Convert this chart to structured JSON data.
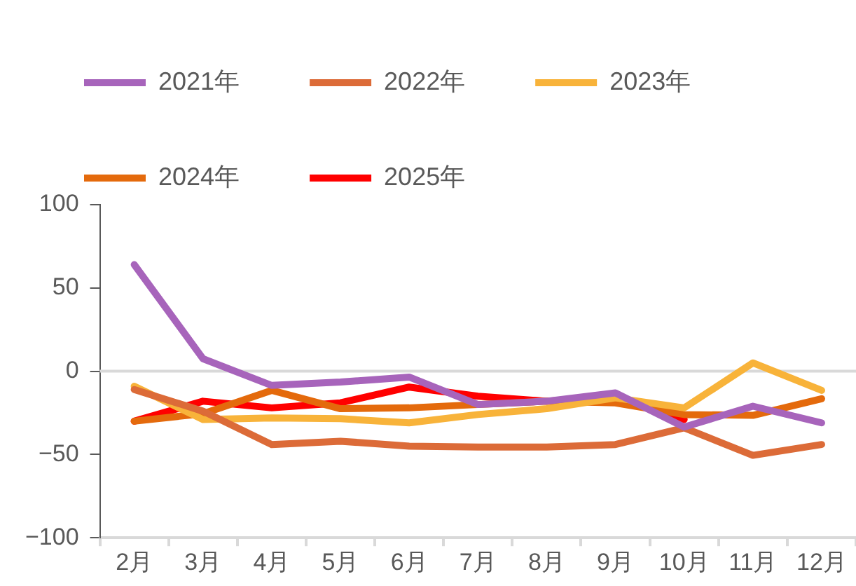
{
  "chart_data": {
    "type": "line",
    "categories": [
      "2月",
      "3月",
      "4月",
      "5月",
      "6月",
      "7月",
      "8月",
      "9月",
      "10月",
      "11月",
      "12月"
    ],
    "series": [
      {
        "name": "2021年",
        "color": "#a764bb",
        "values": [
          64,
          7.5,
          -8.5,
          -6.5,
          -3.5,
          -20,
          -18,
          -13,
          -33.5,
          -21,
          -31
        ]
      },
      {
        "name": "2022年",
        "color": "#dc6b38",
        "values": [
          -11,
          -24,
          -44,
          -42,
          -45,
          -45.5,
          -45.5,
          -44,
          -34,
          -50.5,
          -44
        ]
      },
      {
        "name": "2023年",
        "color": "#f8b33a",
        "values": [
          -9,
          -29,
          -28,
          -28.5,
          -31,
          -26,
          -22.5,
          -16,
          -22,
          5,
          -11.5
        ]
      },
      {
        "name": "2024年",
        "color": "#e46a0c",
        "values": [
          -30,
          -25.5,
          -11.5,
          -22.5,
          -22,
          -20,
          -18,
          -19,
          -26,
          -26.5,
          -16.5
        ]
      },
      {
        "name": "2025年",
        "color": "#ff0000",
        "values": [
          -30,
          -18,
          -22,
          -19,
          -9.5,
          -15,
          -18,
          -15,
          -29,
          null,
          null
        ]
      }
    ],
    "ylim": [
      -100,
      100
    ],
    "yticks": [
      100,
      50,
      0,
      {
        "value": -50,
        "label": "−50"
      },
      {
        "value": -100,
        "label": "−100"
      }
    ],
    "ref_lines": [
      {
        "axis": "y",
        "value": 0,
        "color": "#d9d9d9"
      }
    ],
    "grid": false,
    "legend": "top",
    "marker": "none",
    "line_style": "solid"
  }
}
